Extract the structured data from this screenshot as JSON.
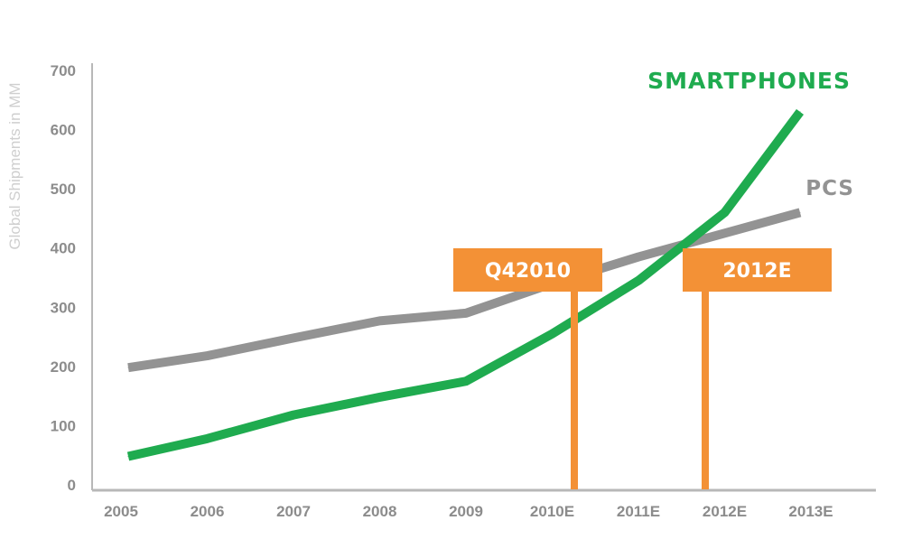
{
  "chart_data": {
    "type": "line",
    "ylabel": "Global Shipments in MM",
    "ylim": [
      0,
      700
    ],
    "yticks": [
      0,
      100,
      200,
      300,
      400,
      500,
      600,
      700
    ],
    "categories": [
      "2005",
      "2006",
      "2007",
      "2008",
      "2009",
      "2010E",
      "2011E",
      "2012E",
      "2013E"
    ],
    "series": [
      {
        "name": "PCS",
        "color": "#939393",
        "values": [
          198,
          218,
          248,
          277,
          290,
          340,
          385,
          425,
          460
        ]
      },
      {
        "name": "SMARTPHONES",
        "color": "#1fab4f",
        "values": [
          48,
          78,
          118,
          148,
          175,
          255,
          345,
          460,
          630
        ]
      }
    ],
    "callouts": [
      {
        "label": "Q42010",
        "x": "2010E",
        "color": "#f39136"
      },
      {
        "label": "2012E",
        "x": "2012E",
        "color": "#f39136"
      }
    ],
    "grid": false,
    "legend": "direct labels at line ends"
  }
}
